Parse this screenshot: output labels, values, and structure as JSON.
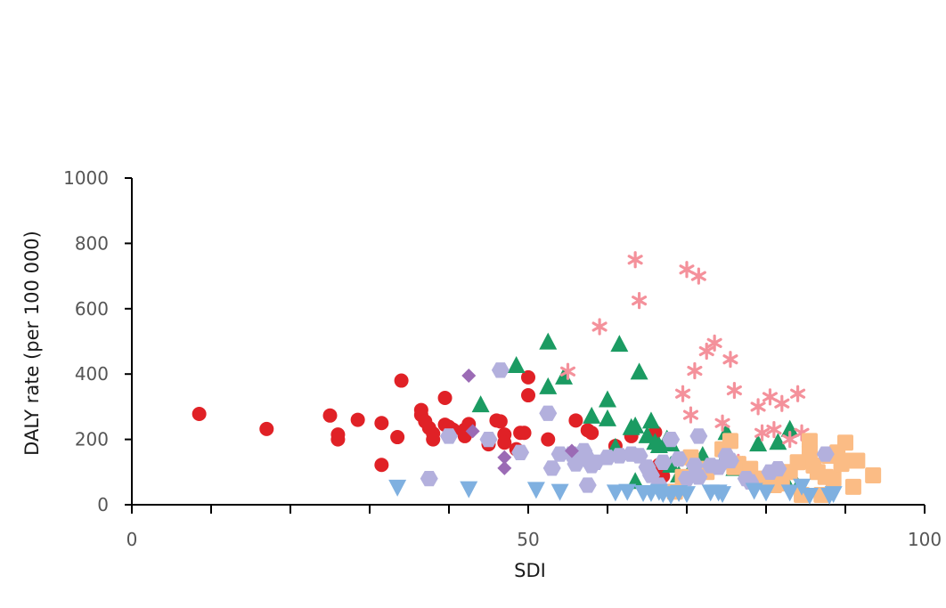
{
  "chart_data": {
    "type": "scatter",
    "title": "",
    "xlabel": "SDI",
    "ylabel": "DALY rate (per 100 000)",
    "xlim": [
      0,
      100
    ],
    "ylim": [
      0,
      1000
    ],
    "x_tick_labels": [
      {
        "value": 0,
        "label": "0"
      },
      {
        "value": 50,
        "label": "50"
      },
      {
        "value": 100,
        "label": "100"
      }
    ],
    "x_minor_ticks": [
      10,
      20,
      30,
      40,
      60,
      70,
      80,
      90
    ],
    "y_tick_labels": [
      {
        "value": 0,
        "label": "0"
      },
      {
        "value": 200,
        "label": "200"
      },
      {
        "value": 400,
        "label": "400"
      },
      {
        "value": 600,
        "label": "600"
      },
      {
        "value": 800,
        "label": "800"
      },
      {
        "value": 1000,
        "label": "1000"
      }
    ],
    "grid": false,
    "legend": "none",
    "series": [
      {
        "marker": "circle",
        "color": "#e02126",
        "points": [
          [
            8.5,
            278
          ],
          [
            17,
            232
          ],
          [
            25,
            273
          ],
          [
            26,
            215
          ],
          [
            26,
            200
          ],
          [
            28.5,
            260
          ],
          [
            31.5,
            250
          ],
          [
            31.5,
            122
          ],
          [
            33.5,
            207
          ],
          [
            34,
            380
          ],
          [
            36.5,
            290
          ],
          [
            36.5,
            275
          ],
          [
            37,
            255
          ],
          [
            37.5,
            235
          ],
          [
            38,
            218
          ],
          [
            38,
            200
          ],
          [
            39.5,
            327
          ],
          [
            39.5,
            245
          ],
          [
            40,
            238
          ],
          [
            40.5,
            230
          ],
          [
            42,
            230
          ],
          [
            42,
            210
          ],
          [
            42.5,
            247
          ],
          [
            45,
            185
          ],
          [
            46,
            258
          ],
          [
            46.5,
            255
          ],
          [
            47,
            215
          ],
          [
            47,
            190
          ],
          [
            48.5,
            170
          ],
          [
            49,
            220
          ],
          [
            49.5,
            220
          ],
          [
            50,
            390
          ],
          [
            50,
            335
          ],
          [
            52.5,
            200
          ],
          [
            56,
            258
          ],
          [
            57.5,
            228
          ],
          [
            58,
            220
          ],
          [
            61,
            180
          ],
          [
            63,
            210
          ],
          [
            66,
            222
          ],
          [
            66.5,
            122
          ],
          [
            67,
            88
          ]
        ]
      },
      {
        "marker": "triangle-up",
        "color": "#1b9b62",
        "points": [
          [
            44,
            305
          ],
          [
            48.5,
            425
          ],
          [
            52.5,
            360
          ],
          [
            52.5,
            497
          ],
          [
            54.5,
            390
          ],
          [
            58,
            270
          ],
          [
            60,
            320
          ],
          [
            60,
            262
          ],
          [
            61,
            175
          ],
          [
            61.5,
            490
          ],
          [
            63,
            235
          ],
          [
            63.5,
            240
          ],
          [
            64,
            405
          ],
          [
            63.5,
            70
          ],
          [
            65,
            210
          ],
          [
            65.5,
            255
          ],
          [
            66,
            190
          ],
          [
            66.5,
            180
          ],
          [
            67.5,
            200
          ],
          [
            68,
            185
          ],
          [
            68,
            120
          ],
          [
            69,
            90
          ],
          [
            71,
            130
          ],
          [
            72,
            150
          ],
          [
            74.5,
            130
          ],
          [
            75,
            220
          ],
          [
            76,
            110
          ],
          [
            77,
            120
          ],
          [
            79,
            185
          ],
          [
            81.5,
            190
          ],
          [
            83,
            230
          ],
          [
            82.5,
            70
          ],
          [
            84,
            55
          ]
        ]
      },
      {
        "marker": "asterisk",
        "color": "#f4919b",
        "points": [
          [
            55,
            408
          ],
          [
            59,
            545
          ],
          [
            63.5,
            750
          ],
          [
            64,
            625
          ],
          [
            69.5,
            340
          ],
          [
            70,
            720
          ],
          [
            70.5,
            275
          ],
          [
            71,
            410
          ],
          [
            71.5,
            700
          ],
          [
            72.5,
            470
          ],
          [
            73.5,
            495
          ],
          [
            74.5,
            250
          ],
          [
            75.5,
            445
          ],
          [
            76,
            350
          ],
          [
            76.5,
            130
          ],
          [
            79,
            300
          ],
          [
            79.5,
            220
          ],
          [
            80.5,
            330
          ],
          [
            81,
            230
          ],
          [
            82,
            310
          ],
          [
            83,
            200
          ],
          [
            84,
            340
          ],
          [
            84.5,
            220
          ]
        ]
      },
      {
        "marker": "square",
        "color": "#fbbc85",
        "points": [
          [
            68.5,
            40
          ],
          [
            69.5,
            85
          ],
          [
            70.5,
            145
          ],
          [
            71.5,
            110
          ],
          [
            72.5,
            100
          ],
          [
            74.5,
            170
          ],
          [
            75.5,
            195
          ],
          [
            76,
            115
          ],
          [
            76.5,
            125
          ],
          [
            78,
            110
          ],
          [
            79.5,
            80
          ],
          [
            81,
            60
          ],
          [
            82,
            65
          ],
          [
            83,
            100
          ],
          [
            84,
            130
          ],
          [
            84.5,
            30
          ],
          [
            85.5,
            195
          ],
          [
            85.5,
            160
          ],
          [
            86,
            120
          ],
          [
            86.5,
            100
          ],
          [
            87,
            30
          ],
          [
            87.5,
            85
          ],
          [
            88,
            150
          ],
          [
            88.5,
            80
          ],
          [
            89,
            160
          ],
          [
            89.5,
            125
          ],
          [
            90,
            190
          ],
          [
            90,
            135
          ],
          [
            91,
            55
          ],
          [
            91.5,
            135
          ],
          [
            93.5,
            90
          ]
        ]
      },
      {
        "marker": "hexagon",
        "color": "#b3b0dd",
        "points": [
          [
            37.5,
            80
          ],
          [
            40,
            210
          ],
          [
            46.5,
            412
          ],
          [
            45,
            200
          ],
          [
            49,
            160
          ],
          [
            52.5,
            280
          ],
          [
            53,
            112
          ],
          [
            54,
            155
          ],
          [
            55.5,
            155
          ],
          [
            56,
            125
          ],
          [
            57,
            165
          ],
          [
            57.5,
            60
          ],
          [
            57.5,
            140
          ],
          [
            58,
            120
          ],
          [
            58.5,
            130
          ],
          [
            60,
            145
          ],
          [
            61.5,
            150
          ],
          [
            63,
            155
          ],
          [
            64,
            150
          ],
          [
            65,
            115
          ],
          [
            65.5,
            90
          ],
          [
            66.5,
            60
          ],
          [
            67,
            130
          ],
          [
            68,
            200
          ],
          [
            69,
            140
          ],
          [
            70,
            80
          ],
          [
            71,
            120
          ],
          [
            71.5,
            85
          ],
          [
            71.5,
            210
          ],
          [
            73,
            120
          ],
          [
            74,
            115
          ],
          [
            75,
            150
          ],
          [
            75.5,
            135
          ],
          [
            77.5,
            80
          ],
          [
            78,
            70
          ],
          [
            80.5,
            100
          ],
          [
            81.5,
            110
          ],
          [
            87.5,
            155
          ]
        ]
      },
      {
        "marker": "diamond",
        "color": "#9b6bb5",
        "points": [
          [
            42.5,
            395
          ],
          [
            43,
            225
          ],
          [
            47,
            145
          ],
          [
            47,
            112
          ],
          [
            55.5,
            165
          ]
        ]
      },
      {
        "marker": "triangle-down",
        "color": "#7fb0e0",
        "points": [
          [
            33.5,
            55
          ],
          [
            42.5,
            50
          ],
          [
            51,
            48
          ],
          [
            54,
            42
          ],
          [
            61,
            40
          ],
          [
            62.5,
            42
          ],
          [
            64.5,
            38
          ],
          [
            65.5,
            38
          ],
          [
            66.5,
            42
          ],
          [
            67,
            35
          ],
          [
            68,
            30
          ],
          [
            69,
            38
          ],
          [
            70,
            35
          ],
          [
            73,
            40
          ],
          [
            74,
            40
          ],
          [
            74.5,
            35
          ],
          [
            78.5,
            45
          ],
          [
            80,
            40
          ],
          [
            83,
            40
          ],
          [
            84.5,
            58
          ],
          [
            85.5,
            30
          ],
          [
            88,
            30
          ],
          [
            88.5,
            35
          ]
        ]
      }
    ]
  }
}
